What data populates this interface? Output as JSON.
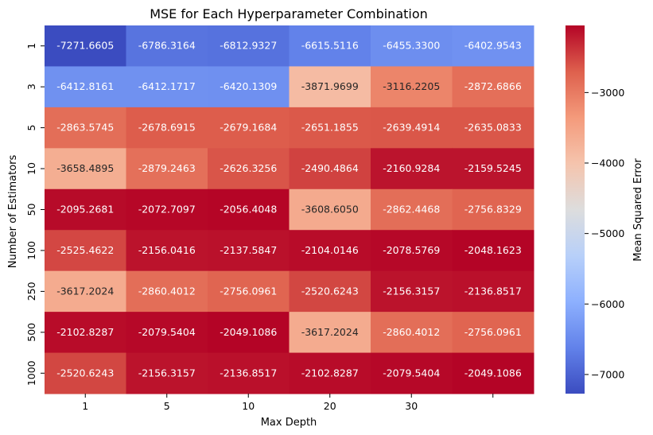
{
  "chart_data": {
    "type": "heatmap",
    "title": "MSE for Each Hyperparameter Combination",
    "xlabel": "Max Depth",
    "ylabel": "Number of Estimators",
    "x_tick_labels": [
      "1",
      "5",
      "10",
      "20",
      "30",
      ""
    ],
    "y_tick_labels": [
      "1",
      "3",
      "5",
      "10",
      "50",
      "100",
      "250",
      "500",
      "1000"
    ],
    "values": [
      [
        -7271.6605,
        -6786.3164,
        -6812.9327,
        -6615.5116,
        -6455.33,
        -6402.9543
      ],
      [
        -6412.8161,
        -6412.1717,
        -6420.1309,
        -3871.9699,
        -3116.2205,
        -2872.6866
      ],
      [
        -2863.5745,
        -2678.6915,
        -2679.1684,
        -2651.1855,
        -2639.4914,
        -2635.0833
      ],
      [
        -3658.4895,
        -2879.2463,
        -2626.3256,
        -2490.4864,
        -2160.9284,
        -2159.5245
      ],
      [
        -2095.2681,
        -2072.7097,
        -2056.4048,
        -3608.605,
        -2862.4468,
        -2756.8329
      ],
      [
        -2525.4622,
        -2156.0416,
        -2137.5847,
        -2104.0146,
        -2078.5769,
        -2048.1623
      ],
      [
        -3617.2024,
        -2860.4012,
        -2756.0961,
        -2520.6243,
        -2156.3157,
        -2136.8517
      ],
      [
        -2102.8287,
        -2079.5404,
        -2049.1086,
        -3617.2024,
        -2860.4012,
        -2756.0961
      ],
      [
        -2520.6243,
        -2156.3157,
        -2136.8517,
        -2102.8287,
        -2079.5404,
        -2049.1086
      ]
    ],
    "value_format": "4 decimals",
    "colormap": "coolwarm",
    "color_range": [
      -7271.6605,
      -2048.1623
    ],
    "colorbar": {
      "label": "Mean Squared Error",
      "ticks": [
        -7000,
        -6000,
        -5000,
        -4000,
        -3000
      ],
      "tick_labels": [
        "−7000",
        "−6000",
        "−5000",
        "−4000",
        "−3000"
      ]
    }
  }
}
